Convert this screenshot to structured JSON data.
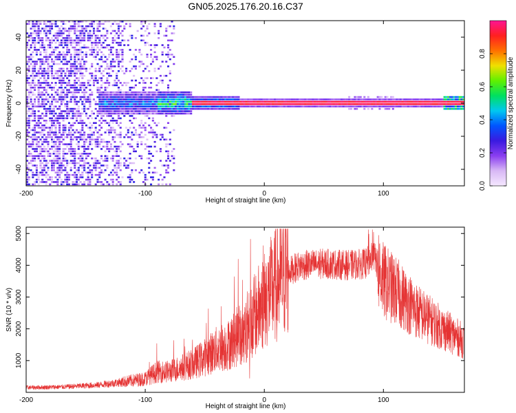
{
  "title": "GN05.2025.176.20.16.C37",
  "colors": {
    "snr_line": "#e53333",
    "zero_ridge": "#e8203a",
    "background": "#ffffff"
  },
  "chart_data": [
    {
      "type": "heatmap",
      "xlabel": "Height of straight line (km)",
      "ylabel": "Frequency (Hz)",
      "xlim": [
        -200,
        168
      ],
      "ylim": [
        -50,
        50
      ],
      "x_ticks": [
        -200,
        -100,
        0,
        100
      ],
      "y_ticks": [
        -40,
        -20,
        0,
        20,
        40
      ],
      "colorbar": {
        "label": "Normalized spectral amplitude",
        "range": [
          0,
          1
        ],
        "ticks": [
          0.0,
          0.2,
          0.4,
          0.6,
          0.8
        ],
        "colormap": [
          "#f5e8ff",
          "#d8b8f5",
          "#8a3ef0",
          "#3a1ae0",
          "#0055ff",
          "#00c8f0",
          "#00e060",
          "#60f000",
          "#f0e000",
          "#ff7000",
          "#ff2020",
          "#ff1493"
        ]
      },
      "features": {
        "zero_ridge_start_km": -60,
        "zero_ridge_amplitude": 0.97,
        "noise_region_end_km": -75,
        "broadband_noise_amplitude": 0.25
      }
    },
    {
      "type": "line",
      "xlabel": "Height of straight line (km)",
      "ylabel": "SNR (10 * v/v)",
      "xlim": [
        -200,
        168
      ],
      "ylim": [
        0,
        5200
      ],
      "x_ticks": [
        -200,
        -100,
        0,
        100
      ],
      "y_ticks": [
        1000,
        2000,
        3000,
        4000,
        5000
      ],
      "envelope": {
        "x": [
          -200,
          -170,
          -140,
          -120,
          -100,
          -90,
          -80,
          -60,
          -50,
          -40,
          -30,
          -20,
          -10,
          0,
          10,
          20,
          30,
          50,
          70,
          85,
          92,
          100,
          110,
          130,
          150,
          168
        ],
        "y": [
          150,
          170,
          230,
          320,
          430,
          650,
          650,
          900,
          1100,
          1350,
          1500,
          1850,
          2300,
          2900,
          3400,
          3800,
          3990,
          4050,
          4000,
          4050,
          4300,
          3500,
          3200,
          2500,
          2000,
          1600
        ]
      }
    }
  ]
}
